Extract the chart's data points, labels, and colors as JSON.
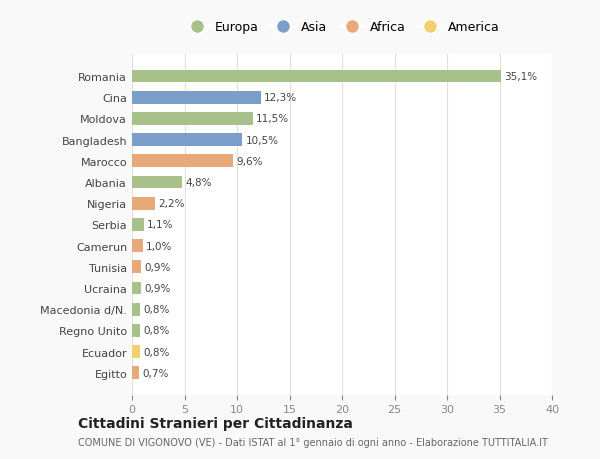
{
  "countries": [
    "Romania",
    "Cina",
    "Moldova",
    "Bangladesh",
    "Marocco",
    "Albania",
    "Nigeria",
    "Serbia",
    "Camerun",
    "Tunisia",
    "Ucraina",
    "Macedonia d/N.",
    "Regno Unito",
    "Ecuador",
    "Egitto"
  ],
  "values": [
    35.1,
    12.3,
    11.5,
    10.5,
    9.6,
    4.8,
    2.2,
    1.1,
    1.0,
    0.9,
    0.9,
    0.8,
    0.8,
    0.8,
    0.7
  ],
  "labels": [
    "35,1%",
    "12,3%",
    "11,5%",
    "10,5%",
    "9,6%",
    "4,8%",
    "2,2%",
    "1,1%",
    "1,0%",
    "0,9%",
    "0,9%",
    "0,8%",
    "0,8%",
    "0,8%",
    "0,7%"
  ],
  "continents": [
    "Europa",
    "Asia",
    "Europa",
    "Asia",
    "Africa",
    "Europa",
    "Africa",
    "Europa",
    "Africa",
    "Africa",
    "Europa",
    "Europa",
    "Europa",
    "America",
    "Africa"
  ],
  "colors": {
    "Europa": "#a8c08a",
    "Asia": "#7b9ec9",
    "Africa": "#e8a97a",
    "America": "#f0d070"
  },
  "legend_order": [
    "Europa",
    "Asia",
    "Africa",
    "America"
  ],
  "xlim": [
    0,
    40
  ],
  "xticks": [
    0,
    5,
    10,
    15,
    20,
    25,
    30,
    35,
    40
  ],
  "title1": "Cittadini Stranieri per Cittadinanza",
  "title2": "COMUNE DI VIGONOVO (VE) - Dati ISTAT al 1° gennaio di ogni anno - Elaborazione TUTTITALIA.IT",
  "bg_color": "#f9f9f9",
  "plot_bg_color": "#ffffff",
  "grid_color": "#e0e0e0"
}
